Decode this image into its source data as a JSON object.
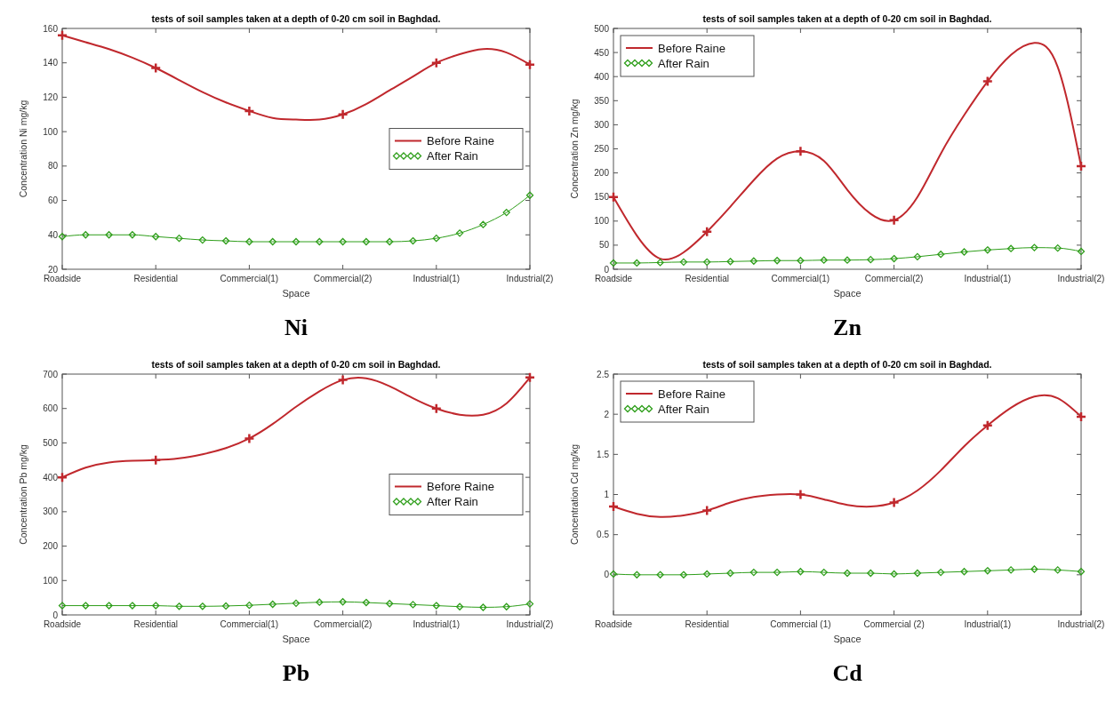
{
  "chart_data": [
    {
      "type": "line",
      "title": "tests of soil samples taken at a depth of 0-20 cm soil in Baghdad.",
      "xlabel": "Space",
      "ylabel": "Concentration Ni mg/kg",
      "annotations": [
        "Ni"
      ],
      "legend": "right",
      "grid": false,
      "categories": [
        "Roadside",
        null,
        null,
        null,
        "Residential",
        null,
        null,
        null,
        "Commercial(1)",
        null,
        null,
        null,
        "Commercial(2)",
        null,
        null,
        null,
        "Industrial(1)",
        null,
        null,
        null,
        "Industrial(2)"
      ],
      "ylim": [
        20,
        160
      ],
      "yticks": [
        20,
        40,
        60,
        80,
        100,
        120,
        140,
        160
      ],
      "series": [
        {
          "type": "scatter",
          "color": "#c0282d",
          "marker": "cross",
          "values": [
            156,
            null,
            null,
            null,
            137,
            null,
            null,
            null,
            112,
            null,
            null,
            null,
            110,
            null,
            null,
            null,
            140,
            null,
            null,
            null,
            139
          ]
        },
        {
          "name": "Before Raine",
          "color": "#c0282d",
          "marker": "none",
          "values": [
            156,
            152,
            148,
            143,
            137,
            130,
            123,
            117,
            112,
            108,
            107,
            107,
            110,
            116,
            124,
            132,
            140,
            145,
            148,
            146,
            139
          ]
        },
        {
          "name": "After Rain",
          "color": "#2e9e1a",
          "marker": "diamond",
          "values": [
            39,
            40,
            40,
            40,
            39,
            38,
            37,
            36.5,
            36,
            36,
            36,
            36,
            36,
            36,
            36,
            36.5,
            38,
            41,
            46,
            53,
            63
          ]
        }
      ]
    },
    {
      "type": "line",
      "title": "tests of soil samples taken at a depth of 0-20 cm soil in Baghdad.",
      "xlabel": "Space",
      "ylabel": "Concentration Zn mg/kg",
      "annotations": [
        "Zn"
      ],
      "legend": "top left",
      "grid": false,
      "categories": [
        "Roadside",
        null,
        null,
        null,
        "Residential",
        null,
        null,
        null,
        "Commercial(1)",
        null,
        null,
        null,
        "Commercial(2)",
        null,
        null,
        null,
        "Industrial(1)",
        null,
        null,
        null,
        "Industrial(2)"
      ],
      "ylim": [
        0,
        500
      ],
      "yticks": [
        0,
        50,
        100,
        150,
        200,
        250,
        300,
        350,
        400,
        450,
        500
      ],
      "series": [
        {
          "type": "scatter",
          "color": "#c0282d",
          "marker": "cross",
          "values": [
            150,
            null,
            null,
            null,
            78,
            null,
            null,
            null,
            245,
            null,
            null,
            null,
            102,
            null,
            null,
            null,
            390,
            null,
            null,
            null,
            214
          ]
        },
        {
          "name": "Before Raine",
          "color": "#c0282d",
          "marker": "none",
          "values": [
            150,
            70,
            22,
            35,
            78,
            130,
            185,
            230,
            245,
            225,
            165,
            115,
            102,
            150,
            240,
            320,
            390,
            445,
            470,
            420,
            214
          ]
        },
        {
          "name": "After Rain",
          "color": "#2e9e1a",
          "marker": "diamond",
          "values": [
            13,
            13,
            14,
            15,
            15,
            16,
            17,
            18,
            18,
            19,
            19,
            20,
            22,
            26,
            31,
            36,
            40,
            43,
            45,
            44,
            37
          ]
        }
      ]
    },
    {
      "type": "line",
      "title": "tests of soil samples taken at a depth of 0-20 cm soil in Baghdad.",
      "xlabel": "Space",
      "ylabel": "Concentration Pb mg/kg",
      "annotations": [
        "Pb"
      ],
      "legend": "right",
      "grid": false,
      "categories": [
        "Roadside",
        null,
        null,
        null,
        "Residential",
        null,
        null,
        null,
        "Commercial(1)",
        null,
        null,
        null,
        "Commercial(2)",
        null,
        null,
        null,
        "Industrial(1)",
        null,
        null,
        null,
        "Industrial(2)"
      ],
      "ylim": [
        0,
        700
      ],
      "yticks": [
        0,
        100,
        200,
        300,
        400,
        500,
        600,
        700
      ],
      "series": [
        {
          "type": "scatter",
          "color": "#c0282d",
          "marker": "cross",
          "values": [
            400,
            null,
            null,
            null,
            450,
            null,
            null,
            null,
            513,
            null,
            null,
            null,
            683,
            null,
            null,
            null,
            600,
            null,
            null,
            null,
            690
          ]
        },
        {
          "name": "Before Raine",
          "color": "#c0282d",
          "marker": "none",
          "values": [
            400,
            428,
            443,
            448,
            450,
            455,
            467,
            485,
            513,
            555,
            605,
            650,
            683,
            688,
            665,
            630,
            600,
            582,
            582,
            615,
            690
          ]
        },
        {
          "name": "After Rain",
          "color": "#2e9e1a",
          "marker": "diamond",
          "values": [
            27,
            27,
            27,
            27,
            27,
            25,
            25,
            26,
            28,
            31,
            34,
            37,
            38,
            36,
            33,
            30,
            27,
            24,
            22,
            24,
            32
          ]
        }
      ]
    },
    {
      "type": "line",
      "title": "tests of soil samples taken at a depth of 0-20 cm soil in Baghdad.",
      "xlabel": "Space",
      "ylabel": "Concentration Cd mg/kg",
      "annotations": [
        "Cd"
      ],
      "legend": "top left",
      "grid": false,
      "categories": [
        "Roadside",
        null,
        null,
        null,
        "Residential",
        null,
        null,
        null,
        "Commercial (1)",
        null,
        null,
        null,
        "Commercial (2)",
        null,
        null,
        null,
        "Industrial(1)",
        null,
        null,
        null,
        "Industrial(2)"
      ],
      "ylim": [
        -0.5,
        2.5
      ],
      "yticks": [
        0,
        0.5,
        1,
        1.5,
        2,
        2.5
      ],
      "series": [
        {
          "type": "scatter",
          "color": "#c0282d",
          "marker": "cross",
          "values": [
            0.85,
            null,
            null,
            null,
            0.8,
            null,
            null,
            null,
            1.0,
            null,
            null,
            null,
            0.9,
            null,
            null,
            null,
            1.86,
            null,
            null,
            null,
            1.97
          ]
        },
        {
          "name": "Before Raine",
          "color": "#c0282d",
          "marker": "none",
          "values": [
            0.85,
            0.76,
            0.72,
            0.74,
            0.8,
            0.9,
            0.97,
            1.0,
            1.0,
            0.94,
            0.87,
            0.85,
            0.9,
            1.05,
            1.3,
            1.6,
            1.86,
            2.08,
            2.22,
            2.2,
            1.97
          ]
        },
        {
          "name": "After Rain",
          "color": "#2e9e1a",
          "marker": "diamond",
          "values": [
            0.01,
            0,
            0,
            0,
            0.01,
            0.02,
            0.03,
            0.03,
            0.04,
            0.03,
            0.02,
            0.02,
            0.01,
            0.02,
            0.03,
            0.04,
            0.05,
            0.06,
            0.07,
            0.06,
            0.04
          ]
        }
      ]
    }
  ]
}
